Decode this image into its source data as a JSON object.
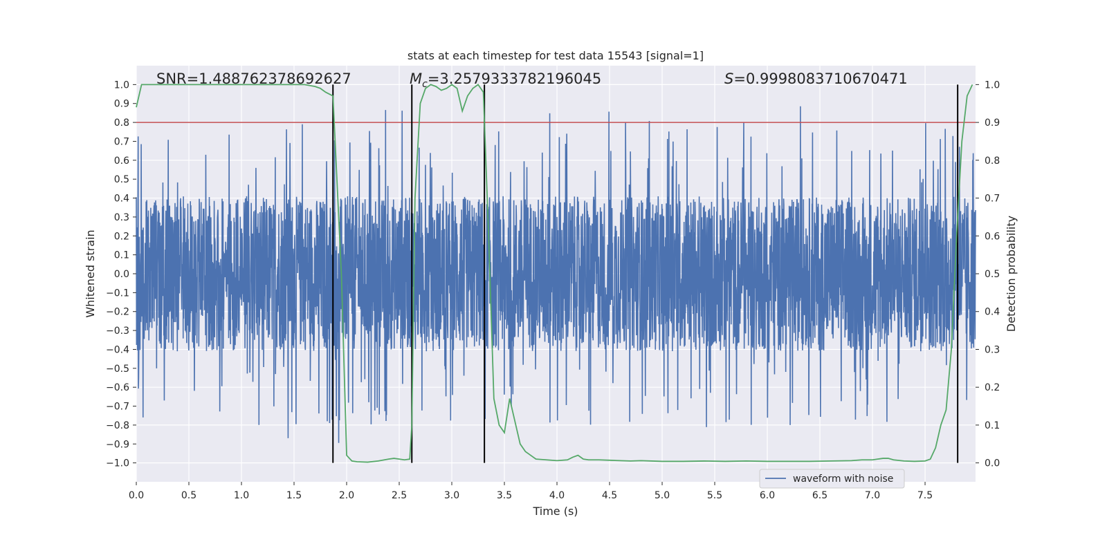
{
  "chart_data": {
    "type": "line",
    "title": "stats at each timestep for test data 15543 [signal=1]",
    "xlabel": "Time (s)",
    "ylabel_left": "Whitened strain",
    "ylabel_right": "Detection probability",
    "xlim": [
      0.0,
      7.98
    ],
    "ylim_left": [
      -1.1,
      1.1
    ],
    "ylim_right": [
      -0.05,
      1.05
    ],
    "xticks": [
      "0.0",
      "0.5",
      "1.0",
      "1.5",
      "2.0",
      "2.5",
      "3.0",
      "3.5",
      "4.0",
      "4.5",
      "5.0",
      "5.5",
      "6.0",
      "6.5",
      "7.0",
      "7.5"
    ],
    "yticks_left": [
      "1.0",
      "0.9",
      "0.8",
      "0.7",
      "0.6",
      "0.5",
      "0.4",
      "0.3",
      "0.2",
      "0.1",
      "0.0",
      "−0.1",
      "−0.2",
      "−0.3",
      "−0.4",
      "−0.5",
      "−0.6",
      "−0.7",
      "−0.8",
      "−0.9",
      "−1.0"
    ],
    "yticks_right": [
      "1.0",
      "0.9",
      "0.8",
      "0.7",
      "0.6",
      "0.5",
      "0.4",
      "0.3",
      "0.2",
      "0.1",
      "0.0"
    ],
    "grid": true,
    "legend": {
      "position": "lower-right",
      "label": "waveform with noise"
    },
    "threshold_left": 0.8,
    "threshold_color": "#c44e52",
    "waveform_color": "#4c72b0",
    "probability_color": "#55a868",
    "vlines_x": [
      1.87,
      2.62,
      3.31,
      7.81
    ],
    "waveform_envelope_note": "dense noise between roughly -0.4 and 0.4 with spikes up to about 0.9 and down to about -1.0",
    "probability_series": {
      "name": "Detection probability",
      "x": [
        0.0,
        0.05,
        0.1,
        0.2,
        0.4,
        0.6,
        0.8,
        1.0,
        1.2,
        1.4,
        1.6,
        1.7,
        1.75,
        1.8,
        1.87,
        1.95,
        2.0,
        2.05,
        2.1,
        2.2,
        2.3,
        2.4,
        2.45,
        2.5,
        2.55,
        2.6,
        2.62,
        2.65,
        2.7,
        2.75,
        2.8,
        2.85,
        2.9,
        2.95,
        3.0,
        3.05,
        3.1,
        3.15,
        3.2,
        3.25,
        3.3,
        3.35,
        3.4,
        3.45,
        3.5,
        3.55,
        3.6,
        3.65,
        3.7,
        3.75,
        3.8,
        3.9,
        4.0,
        4.1,
        4.15,
        4.2,
        4.25,
        4.3,
        4.4,
        4.5,
        4.6,
        4.7,
        4.8,
        5.0,
        5.2,
        5.4,
        5.6,
        5.8,
        6.0,
        6.2,
        6.4,
        6.6,
        6.8,
        6.9,
        6.95,
        7.0,
        7.05,
        7.1,
        7.15,
        7.2,
        7.3,
        7.4,
        7.5,
        7.55,
        7.6,
        7.65,
        7.7,
        7.75,
        7.8,
        7.85,
        7.9,
        7.95
      ],
      "y": [
        0.94,
        1.0,
        1.0,
        1.0,
        1.0,
        1.0,
        1.0,
        1.0,
        1.0,
        1.0,
        1.0,
        0.995,
        0.99,
        0.98,
        0.97,
        0.5,
        0.02,
        0.005,
        0.003,
        0.002,
        0.005,
        0.01,
        0.012,
        0.01,
        0.008,
        0.01,
        0.1,
        0.7,
        0.95,
        0.99,
        1.0,
        0.995,
        0.985,
        0.99,
        1.0,
        0.99,
        0.93,
        0.97,
        0.99,
        1.0,
        0.98,
        0.6,
        0.17,
        0.1,
        0.08,
        0.17,
        0.11,
        0.05,
        0.03,
        0.02,
        0.01,
        0.008,
        0.006,
        0.008,
        0.015,
        0.02,
        0.01,
        0.008,
        0.008,
        0.007,
        0.006,
        0.005,
        0.006,
        0.004,
        0.004,
        0.005,
        0.004,
        0.005,
        0.004,
        0.004,
        0.004,
        0.005,
        0.006,
        0.008,
        0.008,
        0.008,
        0.01,
        0.012,
        0.012,
        0.008,
        0.005,
        0.004,
        0.005,
        0.01,
        0.04,
        0.1,
        0.14,
        0.3,
        0.6,
        0.85,
        0.97,
        1.0
      ]
    },
    "annotations": [
      {
        "text": "SNR=1.488762378692627"
      },
      {
        "text": "=3.2579333782196045",
        "symbol": "M",
        "subscript": "c"
      },
      {
        "text": "=0.9998083710670471",
        "symbol": "S"
      }
    ]
  }
}
